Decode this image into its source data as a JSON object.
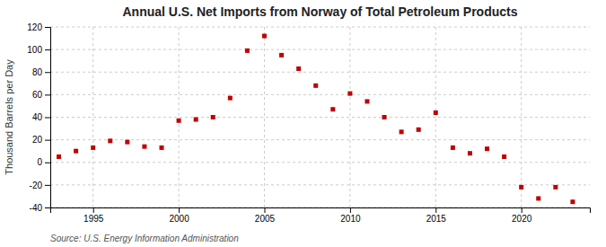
{
  "chart_data": {
    "type": "scatter",
    "title": "Annual U.S. Net Imports from Norway of Total Petroleum Products",
    "ylabel": "Thousand Barrels per Day",
    "annotations": [
      "Source: U.S. Energy Information Administration"
    ],
    "x": [
      1993,
      1994,
      1995,
      1996,
      1997,
      1998,
      1999,
      2000,
      2001,
      2002,
      2003,
      2004,
      2005,
      2006,
      2007,
      2008,
      2009,
      2010,
      2011,
      2012,
      2013,
      2014,
      2015,
      2016,
      2017,
      2018,
      2019,
      2020,
      2021,
      2022,
      2023
    ],
    "values": [
      5,
      10,
      13,
      19,
      18,
      14,
      13,
      37,
      38,
      40,
      57,
      99,
      112,
      95,
      83,
      68,
      47,
      61,
      54,
      40,
      27,
      29,
      44,
      13,
      8,
      12,
      5,
      -22,
      -32,
      -22,
      -35
    ],
    "color": "#c00000",
    "marker": "square",
    "xlim": [
      1992.5,
      2024
    ],
    "xticks": [
      1995,
      2000,
      2005,
      2010,
      2015,
      2020
    ],
    "ylim": [
      -40,
      120
    ],
    "yticks": [
      -40,
      -20,
      0,
      20,
      40,
      60,
      80,
      100,
      120
    ],
    "grid": true
  }
}
